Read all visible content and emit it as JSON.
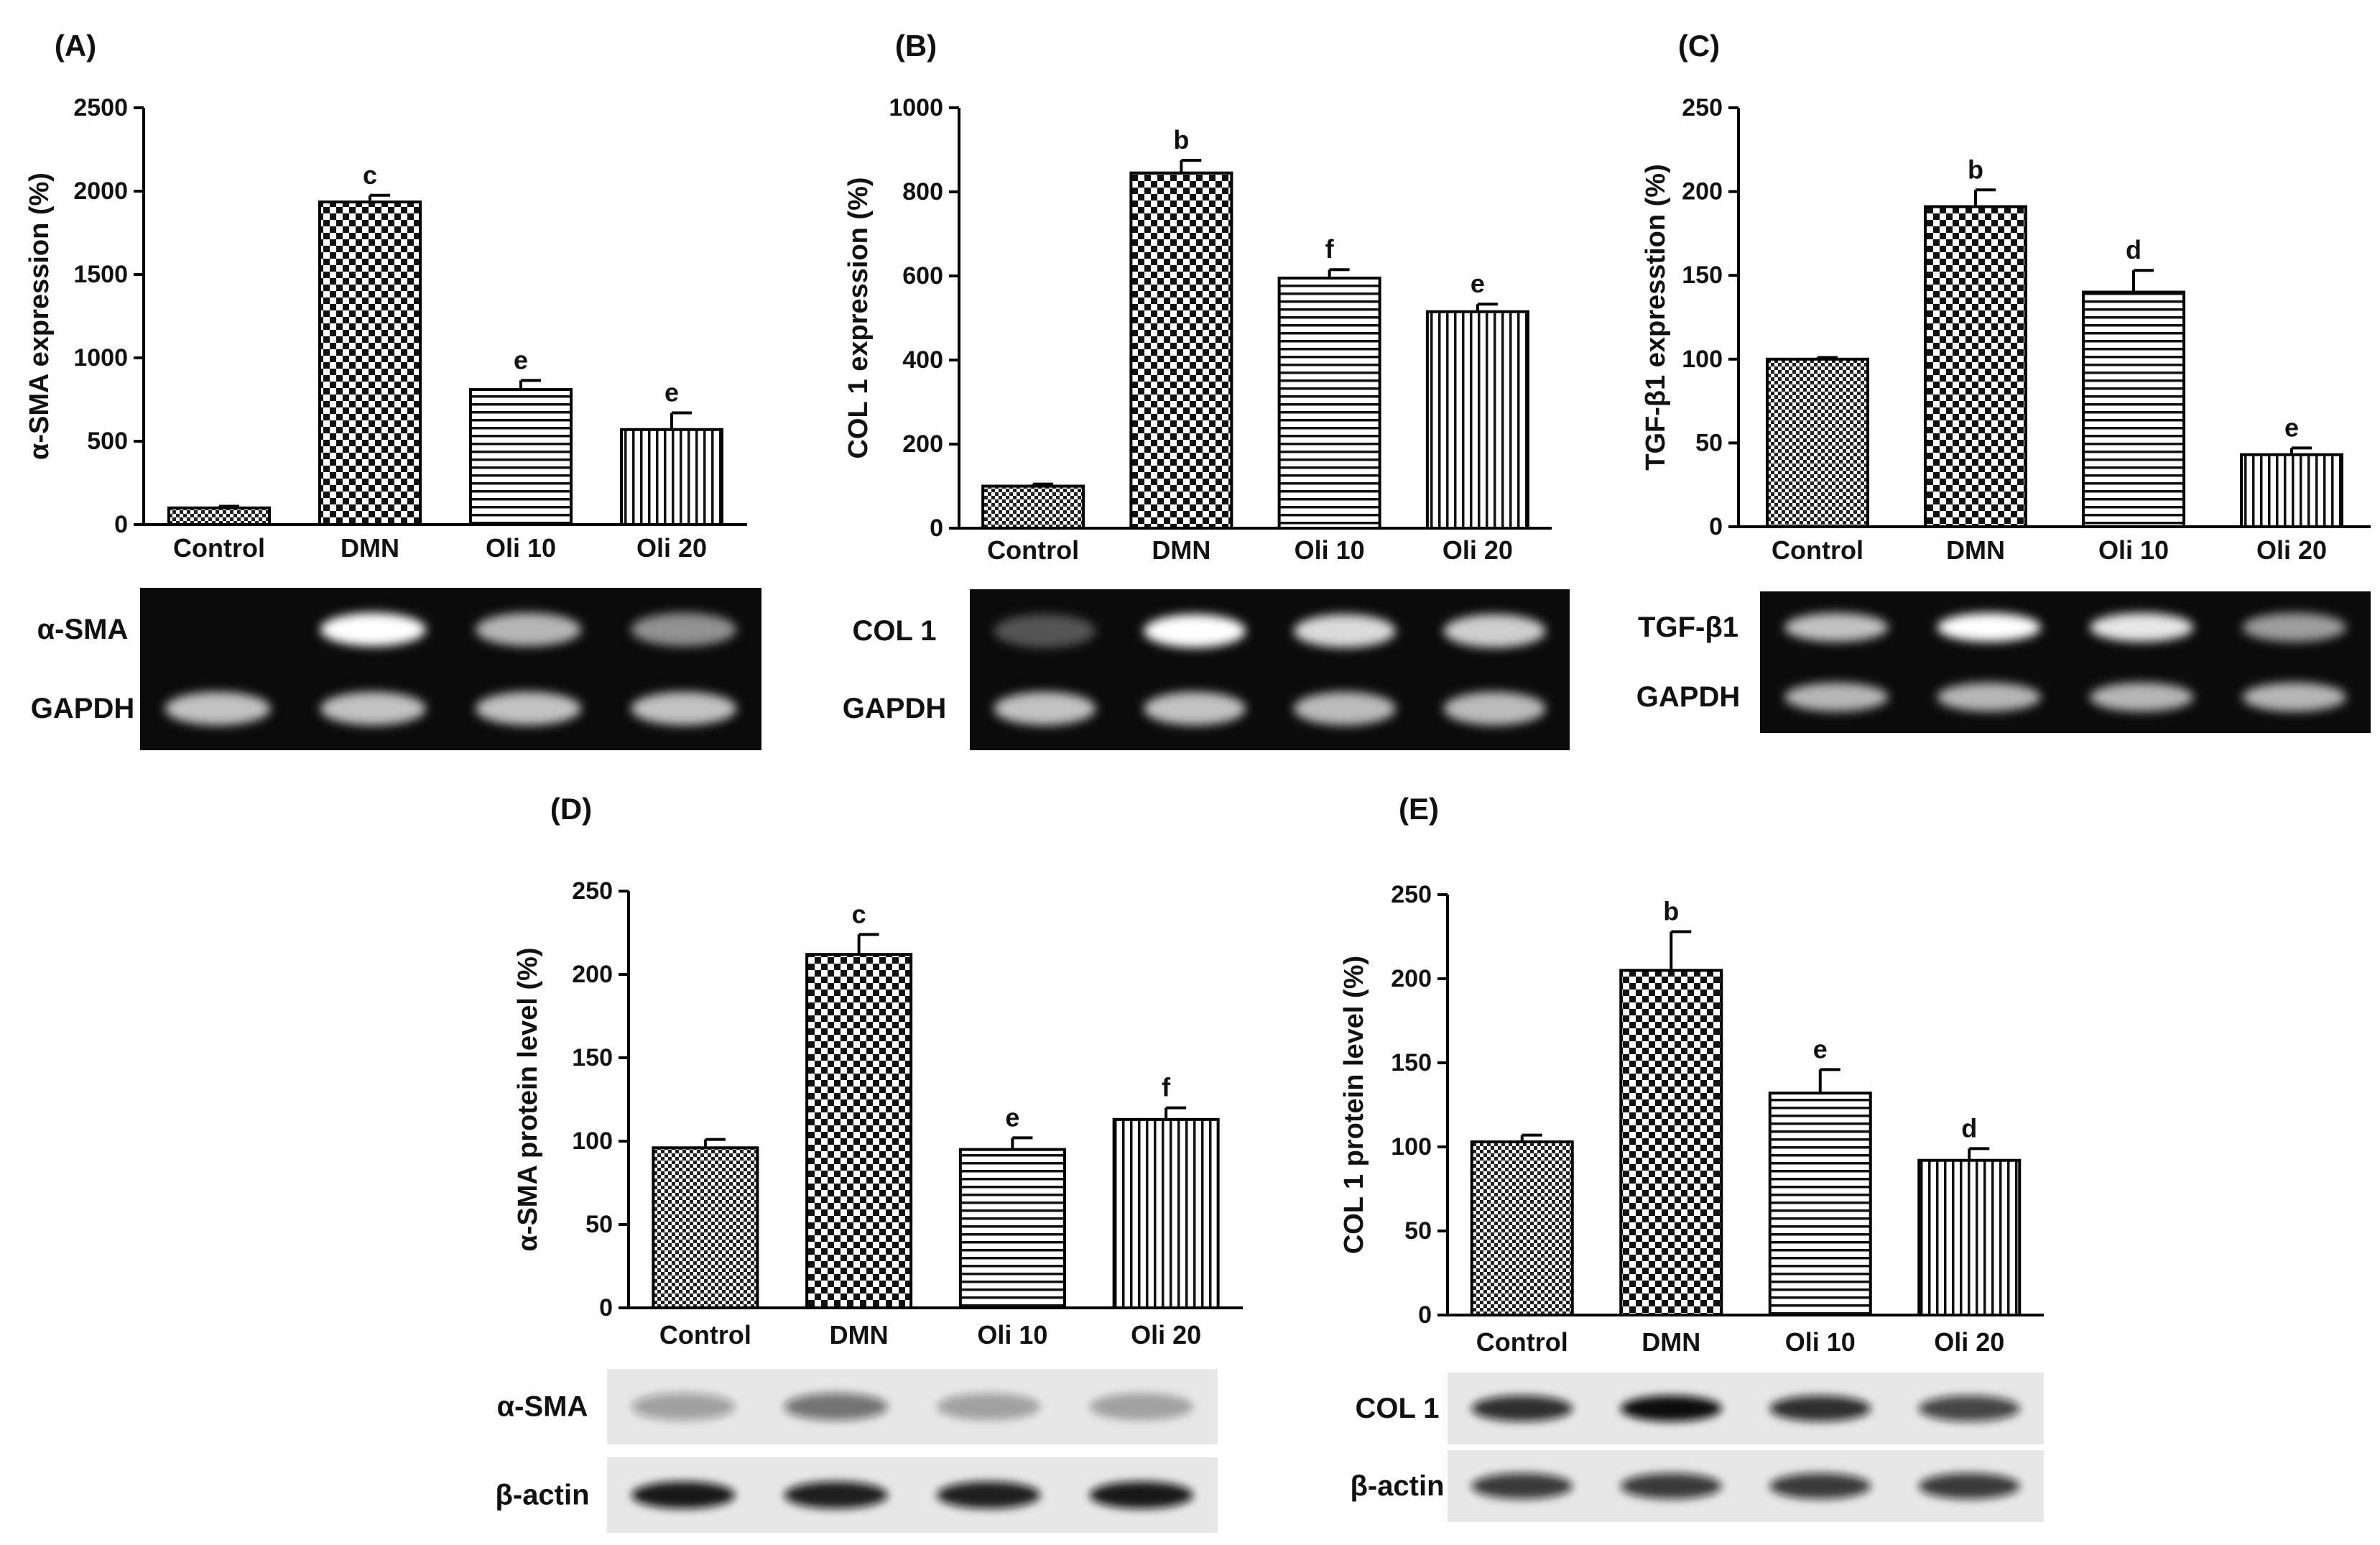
{
  "colors": {
    "axis": "#000000",
    "bar_fill": "#ffffff",
    "gel_background": "#0b0b0b",
    "gel_band": "#ffffff",
    "blot_background": "#e7e7e7",
    "blot_band": "#111111"
  },
  "chart_data": [
    {
      "panel": "(A)",
      "type": "bar",
      "categories": [
        "Control",
        "DMN",
        "Oli 10",
        "Oli 20"
      ],
      "patterns": [
        "fine-check",
        "coarse-check",
        "horizontal-lines",
        "vertical-lines"
      ],
      "values": [
        100,
        1935,
        810,
        570
      ],
      "errors": [
        10,
        40,
        55,
        100
      ],
      "annotations": [
        "",
        "c",
        "e",
        "e"
      ],
      "ylabel": "α-SMA expression (%)",
      "xlabel": "",
      "ylim": [
        0,
        2500
      ],
      "yticks": [
        0,
        500,
        1000,
        1500,
        2000,
        2500
      ],
      "grid": false,
      "bands": [
        {
          "label": "α-SMA",
          "type": "gel",
          "intensity": [
            0.0,
            1.0,
            0.7,
            0.55
          ]
        },
        {
          "label": "GAPDH",
          "type": "gel",
          "intensity": [
            0.75,
            0.75,
            0.75,
            0.75
          ]
        }
      ]
    },
    {
      "panel": "(B)",
      "type": "bar",
      "categories": [
        "Control",
        "DMN",
        "Oli 10",
        "Oli 20"
      ],
      "patterns": [
        "fine-check",
        "coarse-check",
        "horizontal-lines",
        "vertical-lines"
      ],
      "values": [
        100,
        845,
        595,
        515
      ],
      "errors": [
        5,
        30,
        20,
        18
      ],
      "annotations": [
        "",
        "b",
        "f",
        "e"
      ],
      "ylabel": "COL 1 expression (%)",
      "xlabel": "",
      "ylim": [
        0,
        1000
      ],
      "yticks": [
        0,
        200,
        400,
        600,
        800,
        1000
      ],
      "grid": false,
      "bands": [
        {
          "label": "COL 1",
          "type": "gel",
          "intensity": [
            0.3,
            1.0,
            0.85,
            0.8
          ]
        },
        {
          "label": "GAPDH",
          "type": "gel",
          "intensity": [
            0.75,
            0.75,
            0.72,
            0.72
          ]
        }
      ]
    },
    {
      "panel": "(C)",
      "type": "bar",
      "categories": [
        "Control",
        "DMN",
        "Oli 10",
        "Oli 20"
      ],
      "patterns": [
        "fine-check",
        "coarse-check",
        "horizontal-lines",
        "vertical-lines"
      ],
      "values": [
        100,
        191,
        140,
        43
      ],
      "errors": [
        1,
        10,
        13,
        4
      ],
      "annotations": [
        "",
        "b",
        "d",
        "e"
      ],
      "ylabel": "TGF-β1 expresstion (%)",
      "xlabel": "",
      "ylim": [
        0,
        250
      ],
      "yticks": [
        0,
        50,
        100,
        150,
        200,
        250
      ],
      "grid": false,
      "bands": [
        {
          "label": "TGF-β1",
          "type": "gel",
          "intensity": [
            0.75,
            1.0,
            0.9,
            0.6
          ]
        },
        {
          "label": "GAPDH",
          "type": "gel",
          "intensity": [
            0.7,
            0.7,
            0.7,
            0.7
          ]
        }
      ]
    },
    {
      "panel": "(D)",
      "type": "bar",
      "categories": [
        "Control",
        "DMN",
        "Oli 10",
        "Oli 20"
      ],
      "patterns": [
        "fine-check",
        "coarse-check",
        "horizontal-lines",
        "vertical-lines"
      ],
      "values": [
        96,
        212,
        95,
        113
      ],
      "errors": [
        5,
        12,
        7,
        7
      ],
      "annotations": [
        "",
        "c",
        "e",
        "f"
      ],
      "ylabel": "α-SMA protein level (%)",
      "xlabel": "",
      "ylim": [
        0,
        250
      ],
      "yticks": [
        0,
        50,
        100,
        150,
        200,
        250
      ],
      "grid": false,
      "bands": [
        {
          "label": "α-SMA",
          "type": "blot",
          "intensity": [
            0.35,
            0.55,
            0.3,
            0.3
          ]
        },
        {
          "label": "β-actin",
          "type": "blot",
          "intensity": [
            0.95,
            0.92,
            0.92,
            0.95
          ]
        }
      ]
    },
    {
      "panel": "(E)",
      "type": "bar",
      "categories": [
        "Control",
        "DMN",
        "Oli 10",
        "Oli 20"
      ],
      "patterns": [
        "fine-check",
        "coarse-check",
        "horizontal-lines",
        "vertical-lines"
      ],
      "values": [
        103,
        205,
        132,
        92
      ],
      "errors": [
        4,
        23,
        14,
        7
      ],
      "annotations": [
        "",
        "b",
        "e",
        "d"
      ],
      "ylabel": "COL 1 protein level (%)",
      "xlabel": "",
      "ylim": [
        0,
        250
      ],
      "yticks": [
        0,
        50,
        100,
        150,
        200,
        250
      ],
      "grid": false,
      "bands": [
        {
          "label": "COL 1",
          "type": "blot",
          "intensity": [
            0.85,
            1.0,
            0.85,
            0.75
          ]
        },
        {
          "label": "β-actin",
          "type": "blot",
          "intensity": [
            0.8,
            0.8,
            0.8,
            0.8
          ]
        }
      ]
    }
  ]
}
